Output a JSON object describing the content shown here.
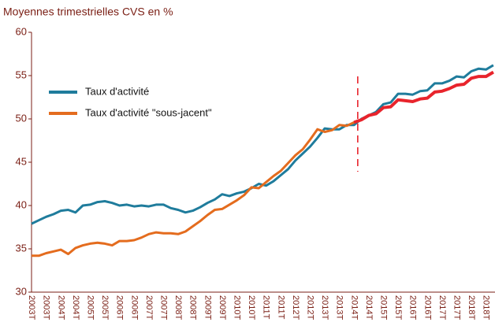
{
  "chart_data": {
    "type": "line",
    "title": "Moyennes trimestrielles CVS en %",
    "categories": [
      "2003T",
      null,
      "2003T",
      null,
      "2004T",
      null,
      "2004T",
      null,
      "2005T",
      null,
      "2005T",
      null,
      "2006T",
      null,
      "2006T",
      null,
      "2007T",
      null,
      "2007T",
      null,
      "2008T",
      null,
      "2008T",
      null,
      "2009T",
      null,
      "2009T",
      null,
      "2010T",
      null,
      "2010T",
      null,
      "2011T",
      null,
      "2011T",
      null,
      "2012T",
      null,
      "2012T",
      null,
      "2013T",
      null,
      "2013T",
      null,
      "2014T",
      null,
      "2014T",
      null,
      "2015T",
      null,
      "2015T",
      null,
      "2016T",
      null,
      "2016T",
      null,
      "2017T",
      null,
      "2017T",
      null,
      "2018T",
      null,
      "2018T",
      null
    ],
    "series": [
      {
        "name": "Taux d'activité",
        "color": "#1f7c9c",
        "values": [
          37.9,
          38.3,
          38.7,
          39.0,
          39.4,
          39.5,
          39.2,
          40.0,
          40.1,
          40.4,
          40.5,
          40.3,
          40.0,
          40.1,
          39.9,
          40.0,
          39.9,
          40.1,
          40.1,
          39.7,
          39.5,
          39.2,
          39.4,
          39.8,
          40.3,
          40.7,
          41.3,
          41.1,
          41.4,
          41.6,
          42.0,
          42.5,
          42.3,
          42.8,
          43.5,
          44.2,
          45.2,
          46.0,
          46.8,
          47.8,
          48.9,
          48.8,
          48.8,
          49.3,
          49.3,
          50.0,
          50.4,
          50.8,
          51.7,
          51.9,
          52.9,
          52.9,
          52.8,
          53.2,
          53.3,
          54.1,
          54.1,
          54.4,
          54.9,
          54.8,
          55.5,
          55.8,
          55.7,
          56.2
        ]
      },
      {
        "name": "Taux d'activité \"sous-jacent\"",
        "color": "#e46c1e",
        "highlight_color": "#e8242c",
        "highlight_from": 44,
        "values": [
          34.2,
          34.2,
          34.5,
          34.7,
          34.9,
          34.4,
          35.1,
          35.4,
          35.6,
          35.7,
          35.6,
          35.4,
          35.9,
          35.9,
          36.0,
          36.3,
          36.7,
          36.9,
          36.8,
          36.8,
          36.7,
          37.0,
          37.6,
          38.2,
          38.9,
          39.5,
          39.6,
          40.1,
          40.6,
          41.2,
          42.1,
          42.0,
          42.7,
          43.4,
          44.0,
          44.9,
          45.8,
          46.5,
          47.6,
          48.8,
          48.5,
          48.7,
          49.3,
          49.2,
          49.6,
          49.9,
          50.4,
          50.6,
          51.3,
          51.4,
          52.2,
          52.1,
          52.0,
          52.3,
          52.4,
          53.1,
          53.2,
          53.5,
          53.9,
          54.0,
          54.7,
          54.9,
          54.9,
          55.4
        ]
      }
    ],
    "ylim": [
      30,
      60
    ],
    "yticks": [
      30,
      35,
      40,
      45,
      50,
      55,
      60
    ],
    "grid": false
  }
}
